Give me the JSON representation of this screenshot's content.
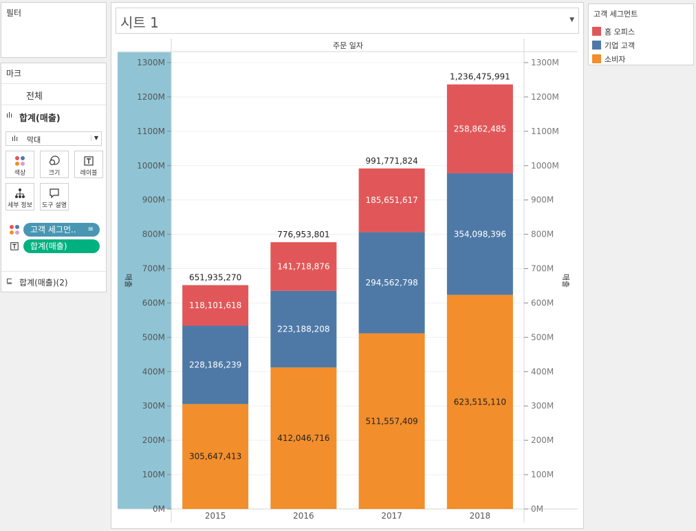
{
  "filters": {
    "title": "필터"
  },
  "marks": {
    "title": "마크",
    "all_label": "전체",
    "measure_label": "합계(매출)",
    "mark_type": "막대",
    "buttons": [
      {
        "label": "색상",
        "icon": "color-dots-icon"
      },
      {
        "label": "크기",
        "icon": "size-icon"
      },
      {
        "label": "레이블",
        "icon": "label-icon"
      },
      {
        "label": "세부 정보",
        "icon": "detail-icon"
      },
      {
        "label": "도구 설명",
        "icon": "tooltip-icon"
      }
    ],
    "pills": [
      {
        "label": "고객 세그먼..",
        "color": "#4996b2",
        "encoding": "color"
      },
      {
        "label": "합계(매출)",
        "color": "#00b180",
        "encoding": "label"
      }
    ],
    "footer_label": "합계(매출)(2)"
  },
  "sheet": {
    "title": "시트 1"
  },
  "legend": {
    "title": "고객 세그먼트",
    "items": [
      {
        "label": "홈 오피스",
        "color": "#e15759"
      },
      {
        "label": "기업 고객",
        "color": "#4e79a7"
      },
      {
        "label": "소비자",
        "color": "#f28e2b"
      }
    ]
  },
  "chart_data": {
    "type": "bar",
    "stacked": true,
    "column_header": "주문 일자",
    "y_axis_label": "매출",
    "categories": [
      "2015",
      "2016",
      "2017",
      "2018"
    ],
    "series": [
      {
        "name": "소비자",
        "color": "#f28e2b",
        "label_color": "#222222",
        "values": [
          305647413,
          412046716,
          511557409,
          623515110
        ],
        "labels": [
          "305,647,413",
          "412,046,716",
          "511,557,409",
          "623,515,110"
        ]
      },
      {
        "name": "기업 고객",
        "color": "#4e79a7",
        "label_color": "#ffffff",
        "values": [
          228186239,
          223188208,
          294562798,
          354098396
        ],
        "labels": [
          "228,186,239",
          "223,188,208",
          "294,562,798",
          "354,098,396"
        ]
      },
      {
        "name": "홈 오피스",
        "color": "#e15759",
        "label_color": "#ffffff",
        "values": [
          118101618,
          141718876,
          185651617,
          258862485
        ],
        "labels": [
          "118,101,618",
          "141,718,876",
          "185,651,617",
          "258,862,485"
        ]
      }
    ],
    "totals": [
      "651,935,270",
      "776,953,801",
      "991,771,824",
      "1,236,475,991"
    ],
    "ylim": [
      0,
      1300000000
    ],
    "y_ticks": [
      "0M",
      "100M",
      "200M",
      "300M",
      "400M",
      "500M",
      "600M",
      "700M",
      "800M",
      "900M",
      "1000M",
      "1100M",
      "1200M",
      "1300M"
    ],
    "y_tick_values": [
      0,
      100000000,
      200000000,
      300000000,
      400000000,
      500000000,
      600000000,
      700000000,
      800000000,
      900000000,
      1000000000,
      1100000000,
      1200000000,
      1300000000
    ],
    "grid": true,
    "legend_position": "right"
  }
}
